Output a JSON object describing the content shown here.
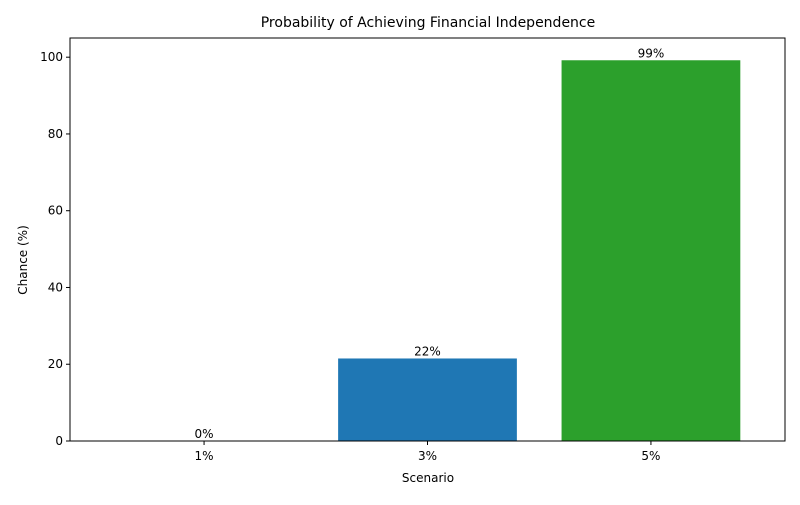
{
  "chart_data": {
    "type": "bar",
    "title": "Probability of Achieving Financial Independence",
    "xlabel": "Scenario",
    "ylabel": "Chance (%)",
    "categories": [
      "1%",
      "3%",
      "5%"
    ],
    "values": [
      0,
      21.5,
      99.2
    ],
    "data_labels": [
      "0%",
      "22%",
      "99%"
    ],
    "colors": [
      "#d62728",
      "#1f77b4",
      "#2ca02c"
    ],
    "ylim": [
      0,
      105
    ],
    "yticks": [
      0,
      20,
      40,
      60,
      80,
      100
    ],
    "grid": false,
    "legend": "none"
  }
}
